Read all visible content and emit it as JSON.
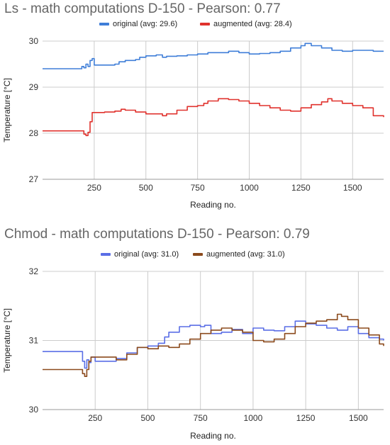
{
  "chart_data": [
    {
      "type": "line",
      "title": "Ls - math computations D-150 - Pearson: 0.77",
      "xlabel": "Reading no.",
      "ylabel": "Temperature [°C]",
      "xlim": [
        0,
        1650
      ],
      "ylim": [
        27,
        30
      ],
      "xticks": [
        250,
        500,
        750,
        1000,
        1250,
        1500
      ],
      "yticks": [
        27,
        28,
        29,
        30
      ],
      "grid": true,
      "legend_position": "top",
      "series": [
        {
          "name": "original (avg: 29.6)",
          "color": "#3f7ed8",
          "points": [
            [
              0,
              29.4
            ],
            [
              180,
              29.4
            ],
            [
              190,
              29.45
            ],
            [
              200,
              29.42
            ],
            [
              210,
              29.5
            ],
            [
              220,
              29.45
            ],
            [
              230,
              29.58
            ],
            [
              240,
              29.62
            ],
            [
              250,
              29.48
            ],
            [
              300,
              29.48
            ],
            [
              350,
              29.5
            ],
            [
              370,
              29.55
            ],
            [
              400,
              29.58
            ],
            [
              450,
              29.6
            ],
            [
              470,
              29.65
            ],
            [
              500,
              29.68
            ],
            [
              550,
              29.7
            ],
            [
              580,
              29.65
            ],
            [
              600,
              29.67
            ],
            [
              650,
              29.68
            ],
            [
              700,
              29.7
            ],
            [
              750,
              29.72
            ],
            [
              800,
              29.75
            ],
            [
              850,
              29.75
            ],
            [
              900,
              29.78
            ],
            [
              950,
              29.75
            ],
            [
              1000,
              29.72
            ],
            [
              1050,
              29.73
            ],
            [
              1100,
              29.75
            ],
            [
              1150,
              29.78
            ],
            [
              1200,
              29.85
            ],
            [
              1250,
              29.9
            ],
            [
              1270,
              29.95
            ],
            [
              1300,
              29.9
            ],
            [
              1350,
              29.85
            ],
            [
              1400,
              29.8
            ],
            [
              1450,
              29.78
            ],
            [
              1500,
              29.8
            ],
            [
              1550,
              29.8
            ],
            [
              1600,
              29.78
            ],
            [
              1650,
              29.78
            ]
          ]
        },
        {
          "name": "augmented (avg: 28.4)",
          "color": "#e0322d",
          "points": [
            [
              0,
              28.05
            ],
            [
              190,
              28.05
            ],
            [
              200,
              27.98
            ],
            [
              210,
              27.95
            ],
            [
              220,
              28.02
            ],
            [
              230,
              28.25
            ],
            [
              240,
              28.45
            ],
            [
              300,
              28.46
            ],
            [
              350,
              28.48
            ],
            [
              380,
              28.52
            ],
            [
              400,
              28.5
            ],
            [
              450,
              28.46
            ],
            [
              500,
              28.42
            ],
            [
              550,
              28.42
            ],
            [
              580,
              28.38
            ],
            [
              600,
              28.42
            ],
            [
              650,
              28.5
            ],
            [
              700,
              28.58
            ],
            [
              750,
              28.6
            ],
            [
              780,
              28.65
            ],
            [
              800,
              28.7
            ],
            [
              850,
              28.75
            ],
            [
              900,
              28.73
            ],
            [
              950,
              28.7
            ],
            [
              1000,
              28.65
            ],
            [
              1050,
              28.6
            ],
            [
              1100,
              28.55
            ],
            [
              1150,
              28.5
            ],
            [
              1200,
              28.48
            ],
            [
              1250,
              28.55
            ],
            [
              1300,
              28.62
            ],
            [
              1350,
              28.68
            ],
            [
              1380,
              28.75
            ],
            [
              1400,
              28.7
            ],
            [
              1450,
              28.65
            ],
            [
              1500,
              28.6
            ],
            [
              1550,
              28.55
            ],
            [
              1600,
              28.38
            ],
            [
              1650,
              28.35
            ]
          ]
        }
      ]
    },
    {
      "type": "line",
      "title": "Chmod - math computations D-150 - Pearson: 0.79",
      "xlabel": "Reading no.",
      "ylabel": "Temperature [°C]",
      "xlim": [
        0,
        1620
      ],
      "ylim": [
        30,
        32
      ],
      "xticks": [
        250,
        500,
        750,
        1000,
        1250,
        1500
      ],
      "yticks": [
        30,
        31,
        32
      ],
      "grid": true,
      "legend_position": "top",
      "series": [
        {
          "name": "original (avg: 31.0)",
          "color": "#5a6ee6",
          "points": [
            [
              0,
              30.84
            ],
            [
              180,
              30.84
            ],
            [
              190,
              30.7
            ],
            [
              200,
              30.6
            ],
            [
              210,
              30.72
            ],
            [
              220,
              30.68
            ],
            [
              230,
              30.76
            ],
            [
              250,
              30.7
            ],
            [
              300,
              30.7
            ],
            [
              350,
              30.74
            ],
            [
              400,
              30.82
            ],
            [
              450,
              30.9
            ],
            [
              500,
              30.92
            ],
            [
              550,
              30.96
            ],
            [
              580,
              31.05
            ],
            [
              600,
              31.12
            ],
            [
              650,
              31.2
            ],
            [
              700,
              31.22
            ],
            [
              750,
              31.2
            ],
            [
              770,
              31.22
            ],
            [
              800,
              31.1
            ],
            [
              850,
              31.12
            ],
            [
              900,
              31.16
            ],
            [
              950,
              31.1
            ],
            [
              1000,
              31.18
            ],
            [
              1050,
              31.15
            ],
            [
              1100,
              31.14
            ],
            [
              1150,
              31.2
            ],
            [
              1200,
              31.28
            ],
            [
              1250,
              31.24
            ],
            [
              1300,
              31.22
            ],
            [
              1350,
              31.18
            ],
            [
              1400,
              31.15
            ],
            [
              1450,
              31.2
            ],
            [
              1500,
              31.1
            ],
            [
              1550,
              31.04
            ],
            [
              1600,
              31.02
            ],
            [
              1620,
              31.0
            ]
          ]
        },
        {
          "name": "augmented (avg: 31.0)",
          "color": "#8b4a1c",
          "points": [
            [
              0,
              30.58
            ],
            [
              180,
              30.58
            ],
            [
              190,
              30.52
            ],
            [
              200,
              30.48
            ],
            [
              210,
              30.58
            ],
            [
              220,
              30.7
            ],
            [
              230,
              30.76
            ],
            [
              300,
              30.76
            ],
            [
              350,
              30.72
            ],
            [
              400,
              30.8
            ],
            [
              450,
              30.9
            ],
            [
              500,
              30.88
            ],
            [
              550,
              30.92
            ],
            [
              600,
              30.9
            ],
            [
              650,
              30.95
            ],
            [
              700,
              31.02
            ],
            [
              750,
              31.1
            ],
            [
              800,
              31.15
            ],
            [
              850,
              31.18
            ],
            [
              900,
              31.15
            ],
            [
              950,
              31.12
            ],
            [
              1000,
              31.0
            ],
            [
              1050,
              30.98
            ],
            [
              1100,
              31.02
            ],
            [
              1150,
              31.1
            ],
            [
              1200,
              31.2
            ],
            [
              1250,
              31.25
            ],
            [
              1300,
              31.28
            ],
            [
              1350,
              31.3
            ],
            [
              1400,
              31.38
            ],
            [
              1420,
              31.35
            ],
            [
              1450,
              31.3
            ],
            [
              1500,
              31.18
            ],
            [
              1550,
              31.08
            ],
            [
              1600,
              30.95
            ],
            [
              1620,
              30.92
            ]
          ]
        }
      ]
    }
  ]
}
